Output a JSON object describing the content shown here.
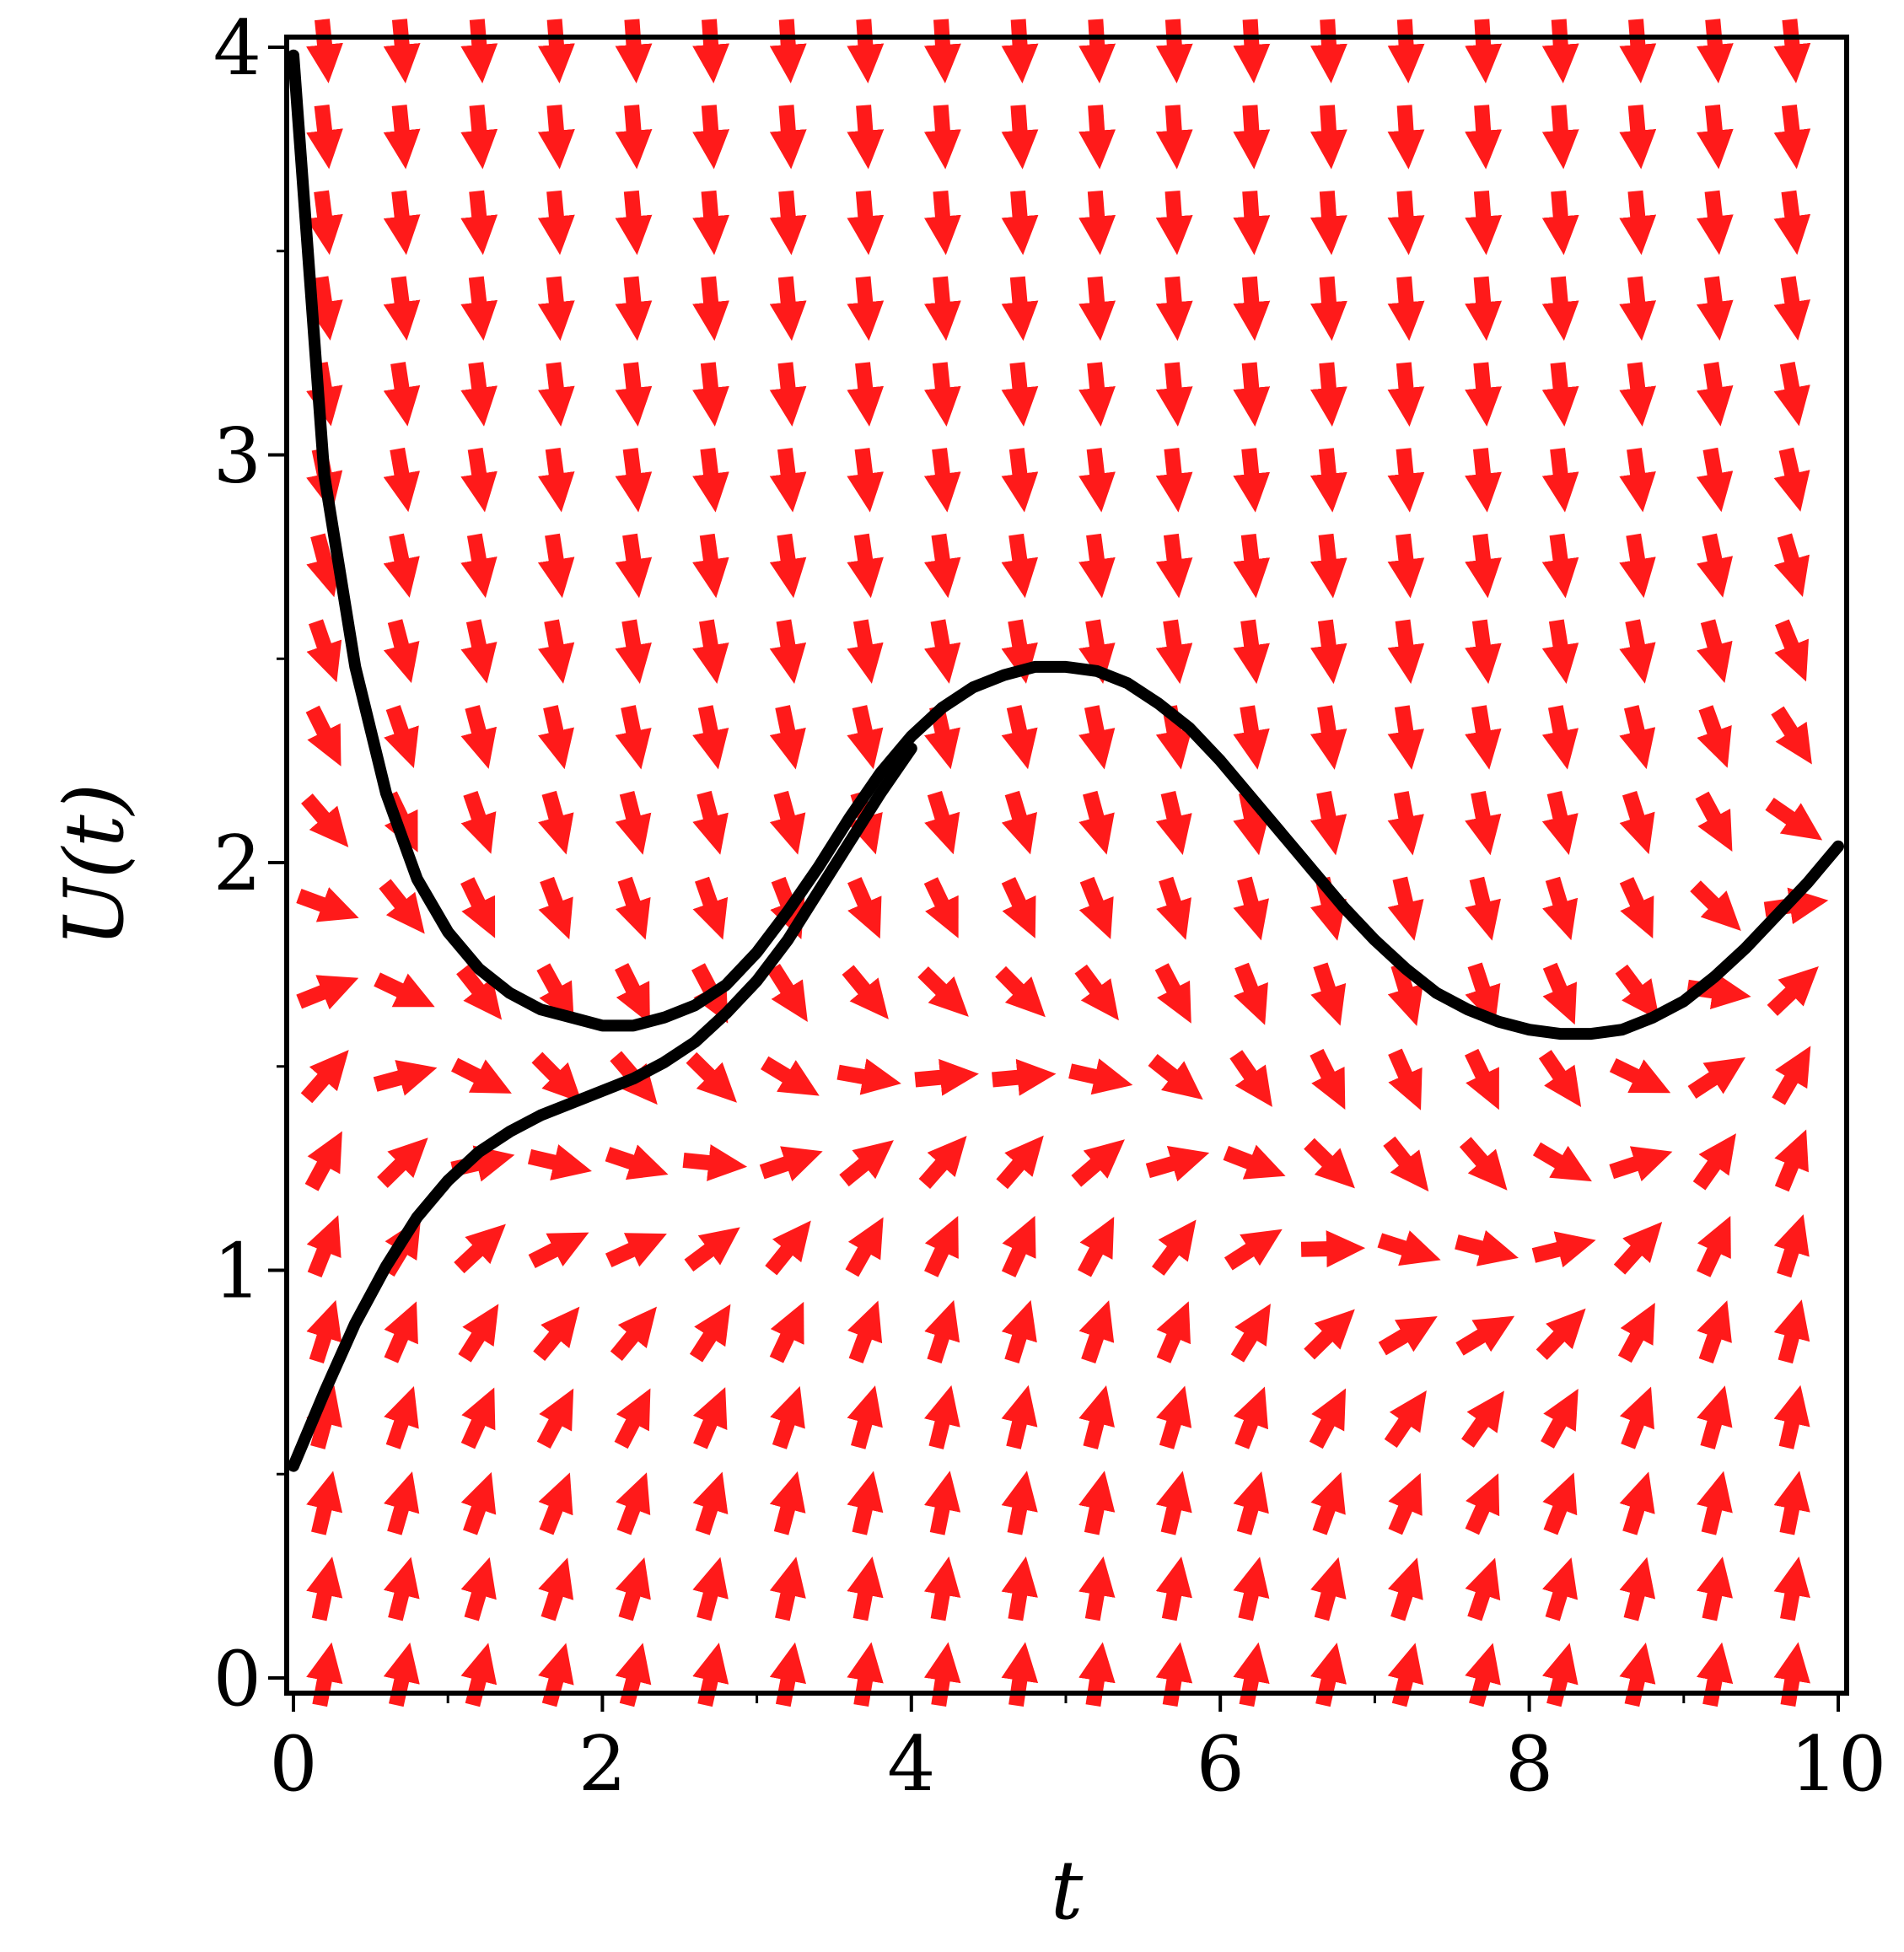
{
  "chart_data": {
    "type": "vector-field",
    "xlabel": "t",
    "ylabel": "U(t)",
    "xlim": [
      0,
      10
    ],
    "ylim": [
      0,
      4
    ],
    "xticks": [
      0,
      2,
      4,
      6,
      8,
      10
    ],
    "yticks": [
      0,
      1,
      2,
      3,
      4
    ],
    "grid": false,
    "arrow_color": "#ff1a1a",
    "curve_color": "#000000",
    "field_grid": {
      "nx": 20,
      "ny": 20
    },
    "series": [
      {
        "x": [
          0,
          0.2,
          0.4,
          0.6,
          0.8,
          1.0,
          1.2,
          1.4,
          1.6,
          1.8,
          2.0,
          2.2,
          2.4,
          2.6,
          2.8,
          3.0,
          3.2,
          3.4,
          3.6,
          3.8,
          4.0,
          4.2,
          4.4,
          4.6,
          4.8,
          5.0,
          5.2,
          5.4,
          5.6,
          5.8,
          6.0,
          6.2,
          6.4,
          6.6,
          6.8,
          7.0,
          7.2,
          7.4,
          7.6,
          7.8,
          8.0,
          8.2,
          8.4,
          8.6,
          8.8,
          9.0,
          9.2,
          9.4,
          9.6,
          9.8,
          10.0
        ],
        "y": [
          3.98,
          2.95,
          2.48,
          2.17,
          1.96,
          1.83,
          1.74,
          1.68,
          1.64,
          1.62,
          1.6,
          1.6,
          1.62,
          1.65,
          1.7,
          1.78,
          1.88,
          1.99,
          2.11,
          2.22,
          2.31,
          2.38,
          2.43,
          2.46,
          2.48,
          2.48,
          2.47,
          2.44,
          2.39,
          2.33,
          2.25,
          2.16,
          2.07,
          1.98,
          1.89,
          1.81,
          1.74,
          1.68,
          1.64,
          1.61,
          1.59,
          1.58,
          1.58,
          1.59,
          1.62,
          1.66,
          1.72,
          1.79,
          1.87,
          1.95,
          2.04
        ]
      },
      {
        "x": [
          0,
          0.2,
          0.4,
          0.6,
          0.8,
          1.0,
          1.2,
          1.4,
          1.6,
          1.8,
          2.0,
          2.2,
          2.4,
          2.6,
          2.8,
          3.0,
          3.2,
          3.4,
          3.6,
          3.8,
          4.0
        ],
        "y": [
          0.52,
          0.7,
          0.87,
          1.01,
          1.13,
          1.22,
          1.29,
          1.34,
          1.38,
          1.41,
          1.44,
          1.47,
          1.51,
          1.56,
          1.63,
          1.71,
          1.81,
          1.93,
          2.05,
          2.17,
          2.28
        ]
      }
    ]
  }
}
